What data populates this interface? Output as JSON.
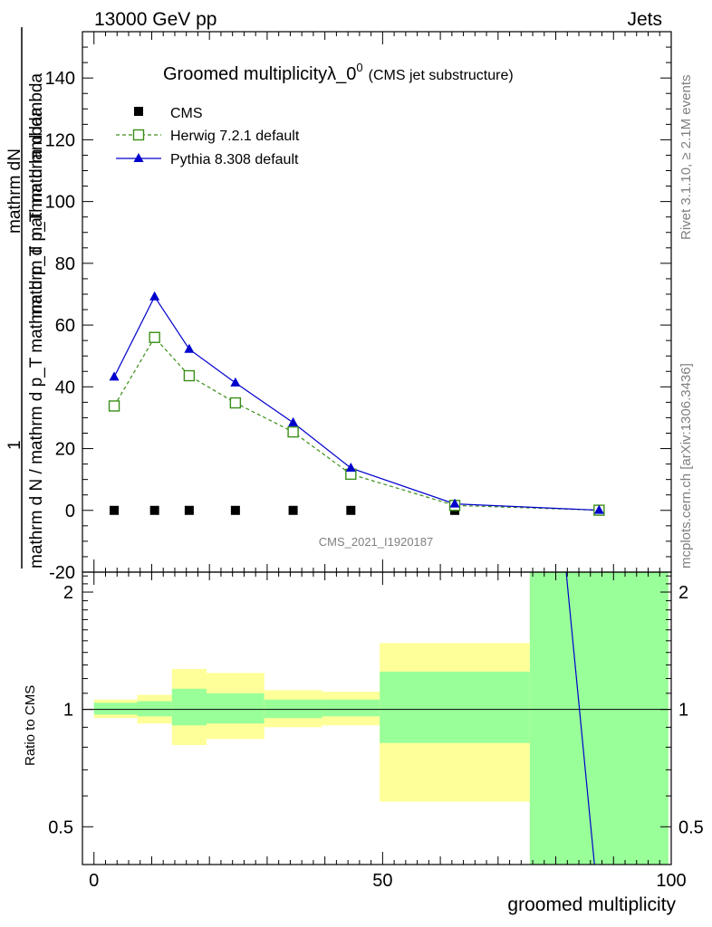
{
  "header": {
    "energy_label": "13000 GeV pp",
    "process_label": "Jets",
    "title_main": "Groomed multiplicity",
    "title_lambda": "λ_0",
    "title_sup": "0",
    "title_sub": "(CMS jet substructure)",
    "rivet_label": "Rivet 3.1.10, ≥ 2.1M events",
    "mcplots_label": "mcplots.cern.ch [arXiv:1306.3436]",
    "watermark": "CMS_2021_I1920187"
  },
  "ylabel_main": {
    "numerator": "mathrm dN",
    "frac_one": "1",
    "denom_top": "mathrm d p_T mathrm d lambda",
    "denom_bottom": "mathrm d N / mathrm d p_T mathrm d p_T mathrm d lambda"
  },
  "ylabel_ratio": "Ratio to CMS",
  "xlabel": "groomed multiplicity",
  "legend": [
    {
      "name": "CMS",
      "color": "#000000",
      "marker": "filled-square"
    },
    {
      "name": "Herwig 7.2.1 default",
      "color": "#3a8e17",
      "marker": "open-square"
    },
    {
      "name": "Pythia 8.308 default",
      "color": "#0000cc",
      "marker": "filled-triangle"
    }
  ],
  "chart_data": {
    "type": "line",
    "x": [
      3.5,
      10.5,
      16.5,
      24.5,
      34.5,
      44.5,
      62.5,
      87.5
    ],
    "xlim": [
      -2,
      100
    ],
    "ylim": [
      -20,
      155
    ],
    "yticks": [
      -20,
      0,
      20,
      40,
      60,
      80,
      100,
      120,
      140
    ],
    "xticks": [
      0,
      50,
      100
    ],
    "series": [
      {
        "name": "CMS",
        "values": [
          0,
          0,
          0,
          0,
          0,
          0,
          0,
          0
        ]
      },
      {
        "name": "Herwig 7.2.1 default",
        "values": [
          33.8,
          56.0,
          43.6,
          34.8,
          25.4,
          11.7,
          1.6,
          0.05
        ]
      },
      {
        "name": "Pythia 8.308 default",
        "values": [
          43.2,
          69.2,
          52.2,
          41.3,
          28.4,
          13.7,
          2.1,
          0.05
        ]
      }
    ],
    "ratio": {
      "ylim": [
        0.4,
        2.25
      ],
      "yticks": [
        0.5,
        1,
        2
      ],
      "bins": [
        {
          "x0": 0,
          "x1": 7.5,
          "yellow": [
            0.95,
            1.06
          ],
          "green": [
            0.97,
            1.04
          ]
        },
        {
          "x0": 7.5,
          "x1": 13.5,
          "yellow": [
            0.92,
            1.09
          ],
          "green": [
            0.96,
            1.05
          ]
        },
        {
          "x0": 13.5,
          "x1": 19.5,
          "yellow": [
            0.81,
            1.27
          ],
          "green": [
            0.91,
            1.13
          ]
        },
        {
          "x0": 19.5,
          "x1": 29.5,
          "yellow": [
            0.84,
            1.24
          ],
          "green": [
            0.92,
            1.1
          ]
        },
        {
          "x0": 29.5,
          "x1": 39.5,
          "yellow": [
            0.9,
            1.12
          ],
          "green": [
            0.95,
            1.06
          ]
        },
        {
          "x0": 39.5,
          "x1": 49.5,
          "yellow": [
            0.91,
            1.11
          ],
          "green": [
            0.96,
            1.06
          ]
        },
        {
          "x0": 49.5,
          "x1": 75.5,
          "yellow": [
            0.58,
            1.48
          ],
          "green": [
            0.82,
            1.25
          ]
        },
        {
          "x0": 75.5,
          "x1": 99.5,
          "yellow": [
            0.4,
            2.25
          ],
          "green": [
            0.4,
            2.25
          ]
        }
      ],
      "pythia_line": {
        "x": [
          81.8,
          86.7
        ],
        "y": [
          2.25,
          0.4
        ]
      }
    }
  }
}
